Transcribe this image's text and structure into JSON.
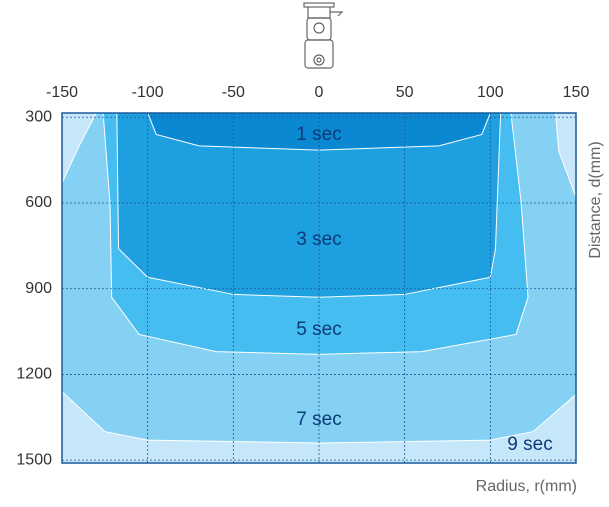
{
  "chart_data": {
    "type": "contour",
    "xlabel": "Radius, r(mm)",
    "ylabel": "Distance, d(mm)",
    "xlim": [
      -150,
      150
    ],
    "ylim": [
      285,
      1510
    ],
    "xticks": [
      -150,
      -100,
      -50,
      0,
      50,
      100,
      150
    ],
    "yticks": [
      300,
      600,
      900,
      1200,
      1500
    ],
    "grid": true,
    "zones": [
      {
        "name": "9 sec",
        "color": "#c6e7f9"
      },
      {
        "name": "7 sec",
        "color": "#84d1f4",
        "x": [
          -130,
          -140,
          -150,
          -150,
          -125,
          -100,
          0,
          100,
          125,
          150,
          150,
          140,
          138
        ],
        "y": [
          285,
          400,
          530,
          1260,
          1400,
          1430,
          1440,
          1430,
          1400,
          1270,
          580,
          420,
          285
        ]
      },
      {
        "name": "5 sec",
        "color": "#45bdf0",
        "x": [
          -126,
          -122,
          -121,
          -105,
          -60,
          0,
          60,
          115,
          122,
          118,
          112
        ],
        "y": [
          285,
          600,
          930,
          1060,
          1120,
          1130,
          1120,
          1060,
          930,
          600,
          285
        ]
      },
      {
        "name": "3 sec",
        "color": "#1e9fe0",
        "x": [
          -118,
          -117,
          -100,
          -50,
          0,
          50,
          100,
          103,
          106
        ],
        "y": [
          285,
          760,
          860,
          920,
          930,
          920,
          860,
          760,
          285
        ]
      },
      {
        "name": "1 sec",
        "color": "#0b88d2",
        "x": [
          -100,
          -95,
          -70,
          0,
          70,
          95,
          100
        ],
        "y": [
          285,
          360,
          400,
          415,
          400,
          360,
          285
        ]
      }
    ]
  }
}
